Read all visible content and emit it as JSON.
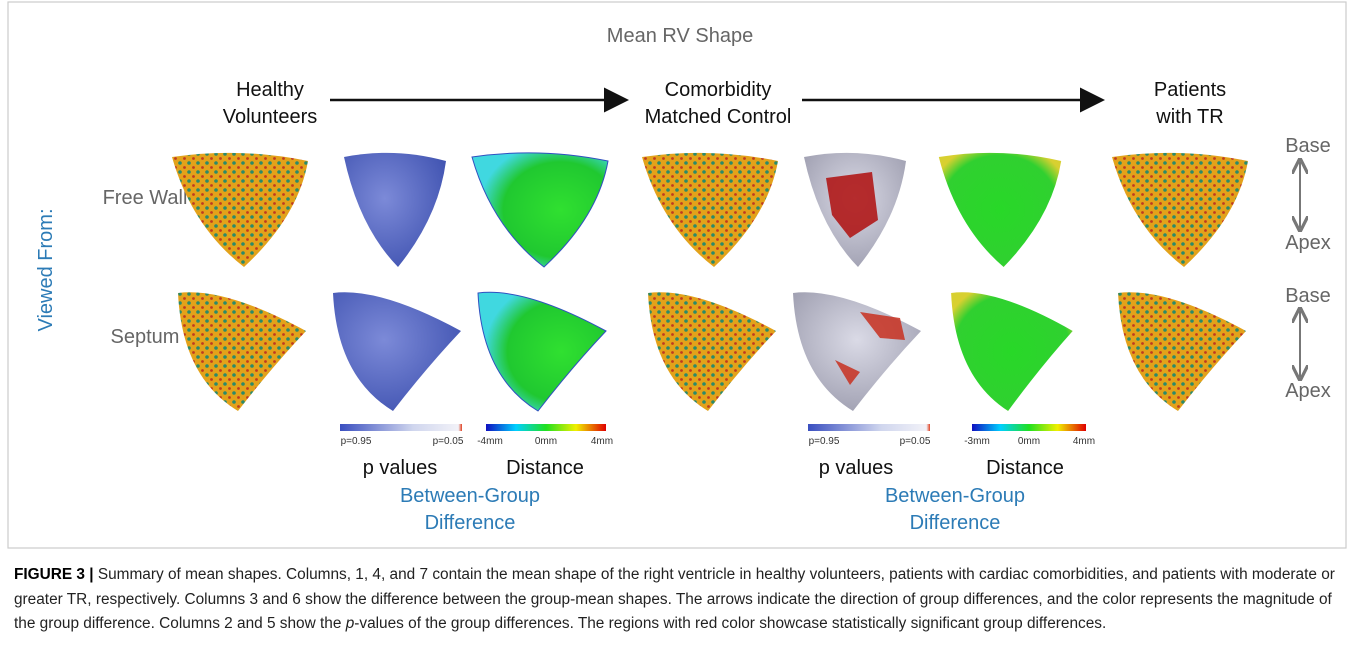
{
  "figure": {
    "title": "Mean RV Shape",
    "groups": [
      {
        "lines": [
          "Healthy",
          "Volunteers"
        ]
      },
      {
        "lines": [
          "Comorbidity",
          "Matched Control"
        ]
      },
      {
        "lines": [
          "Patients",
          "with TR"
        ]
      }
    ],
    "viewed_from": "Viewed From:",
    "rows": [
      "Free Wall",
      "Septum"
    ],
    "orientation": [
      {
        "top": "Base",
        "bottom": "Apex"
      },
      {
        "top": "Base",
        "bottom": "Apex"
      }
    ],
    "difference_panels": [
      {
        "p_bar": {
          "left": "p=0.95",
          "right": "p=0.05",
          "caption": "p values"
        },
        "distance_bar": {
          "left": "-4mm",
          "middle": "0mm",
          "right": "4mm",
          "caption": "Distance"
        },
        "heading": [
          "Between-Group",
          "Difference"
        ]
      },
      {
        "p_bar": {
          "left": "p=0.95",
          "right": "p=0.05",
          "caption": "p values"
        },
        "distance_bar": {
          "left": "-3mm",
          "middle": "0mm",
          "right": "4mm",
          "caption": "Distance"
        },
        "heading": [
          "Between-Group",
          "Difference"
        ]
      }
    ]
  },
  "caption": {
    "label": "FIGURE 3 |",
    "text_before": " Summary of mean shapes. Columns, 1, 4, and 7 contain the mean shape of the right ventricle in healthy volunteers, patients with cardiac comorbidities, and patients with moderate or greater TR, respectively. Columns 3 and 6 show the difference between the group-mean shapes. The arrows indicate the direction of group differences, and the color represents the magnitude of the group difference. Columns 2 and 5 show the ",
    "italic": "p",
    "text_after": "-values of the group differences. The regions with red color showcase statistically significant group differences."
  }
}
